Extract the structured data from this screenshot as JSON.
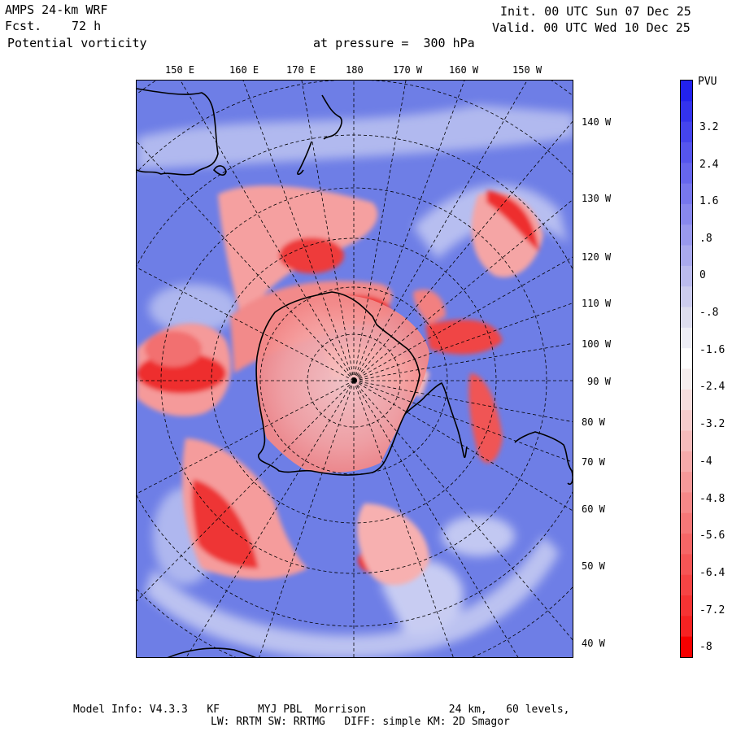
{
  "header": {
    "model": "AMPS 24-km WRF",
    "fcst_label": "Fcst.",
    "fcst_value": "72 h",
    "field": "Potential vorticity",
    "init": "Init. 00 UTC Sun 07 Dec 25",
    "valid": "Valid. 00 UTC Wed 10 Dec 25",
    "pressure": "at pressure =  300 hPa"
  },
  "longitude_top": [
    "150 E",
    "160 E",
    "170 E",
    "180",
    "170 W",
    "160 W",
    "150 W"
  ],
  "longitude_right": [
    "140 W",
    "130 W",
    "120 W",
    "110 W",
    "100 W",
    "90 W",
    "80 W",
    "70 W",
    "60 W",
    "50 W",
    "40 W"
  ],
  "colorbar": {
    "unit": "PVU",
    "labels": [
      "3.2",
      "2.4",
      "1.6",
      ".8",
      "0",
      "-.8",
      "-1.6",
      "-2.4",
      "-3.2",
      "-4",
      "-4.8",
      "-5.6",
      "-6.4",
      "-7.2",
      "-8"
    ],
    "colors": [
      "#2222ee",
      "#3333ee",
      "#4444ee",
      "#5555ee",
      "#6666ee",
      "#7777ee",
      "#8888ee",
      "#9999ee",
      "#aaaaee",
      "#bbbbee",
      "#ccccee",
      "#ddddee",
      "#eeeef6",
      "#ffffff",
      "#f6eeee",
      "#f6dddd",
      "#f6cccc",
      "#f6bbbb",
      "#f6aaaa",
      "#f69999",
      "#f68888",
      "#f67777",
      "#f66666",
      "#f65555",
      "#f64444",
      "#f63333",
      "#f62222",
      "#f60000"
    ],
    "colors_note": "top (blue) to bottom (red)"
  },
  "footer": {
    "line1": "Model Info: V4.3.3   KF      MYJ PBL  Morrison             24 km,   60 levels,",
    "line2": "LW: RRTM SW: RRTMG   DIFF: simple KM: 2D Smagor"
  },
  "palette": {
    "blue": "#6e7ee6",
    "red": "#f23333",
    "pink": "#f7a3a3",
    "white": "#f2f2f8",
    "coast": "#000000"
  }
}
